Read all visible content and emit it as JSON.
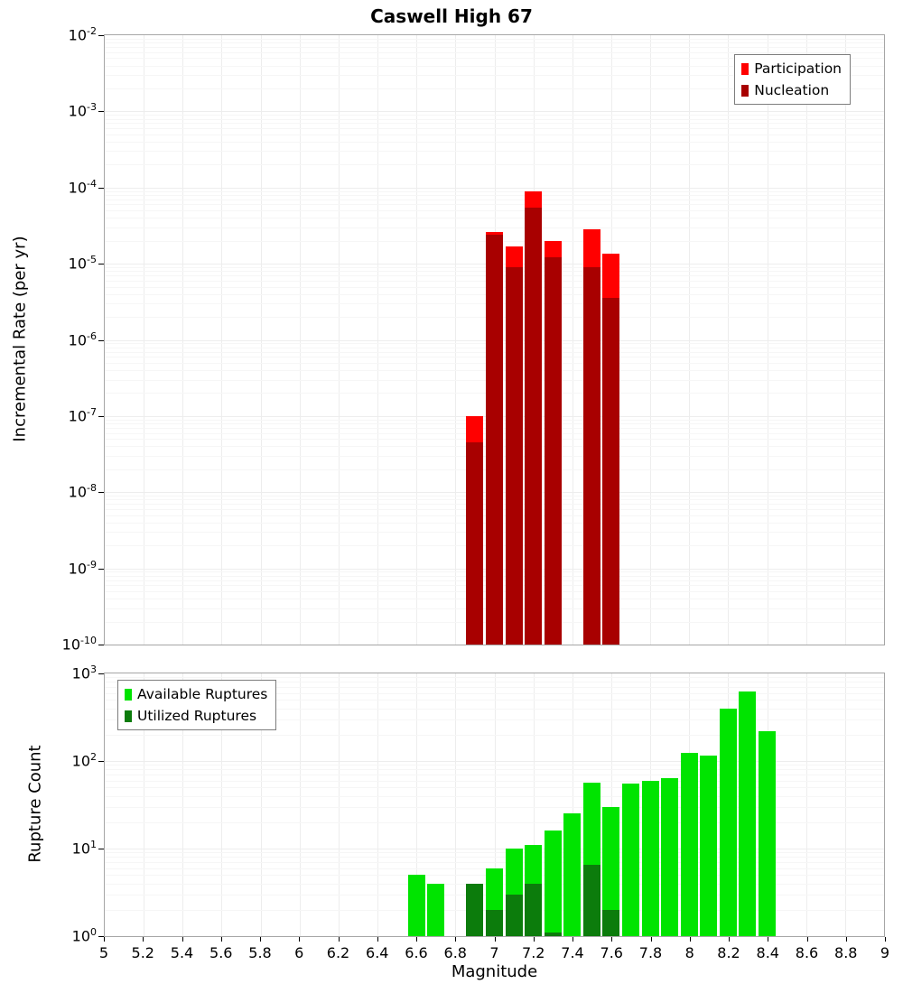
{
  "title": "Caswell High 67",
  "x_axis": {
    "label": "Magnitude",
    "min": 5,
    "max": 9,
    "tick_step": 0.2,
    "tick_labels": [
      "5",
      "5.2",
      "5.4",
      "5.6",
      "5.8",
      "6",
      "6.2",
      "6.4",
      "6.6",
      "6.8",
      "7",
      "7.2",
      "7.4",
      "7.6",
      "7.8",
      "8",
      "8.2",
      "8.4",
      "8.6",
      "8.8",
      "9"
    ]
  },
  "top_chart": {
    "ylabel": "Incremental Rate (per yr)",
    "y_tick_exponents": [
      -2,
      -3,
      -4,
      -5,
      -6,
      -7,
      -8,
      -9,
      -10
    ],
    "legend": [
      {
        "label": "Participation",
        "color": "#ff0000"
      },
      {
        "label": "Nucleation",
        "color": "#a80000"
      }
    ]
  },
  "bottom_chart": {
    "ylabel": "Rupture Count",
    "y_tick_exponents": [
      0,
      1,
      2,
      3
    ],
    "legend": [
      {
        "label": "Available Ruptures",
        "color": "#00e400"
      },
      {
        "label": "Utilized Ruptures",
        "color": "#0c7c0c"
      }
    ]
  },
  "chart_data": [
    {
      "type": "bar",
      "title": "Caswell High 67",
      "xlabel": "Magnitude",
      "ylabel": "Incremental Rate (per yr)",
      "yscale": "log",
      "ylim": [
        1e-10,
        0.01
      ],
      "xlim": [
        5,
        9
      ],
      "bar_width": 0.1,
      "legend_position": "top-right",
      "x": [
        6.9,
        7.0,
        7.1,
        7.2,
        7.3,
        7.5,
        7.6
      ],
      "series": [
        {
          "name": "Participation",
          "color": "#ff0000",
          "values": [
            1e-07,
            2.6e-05,
            1.7e-05,
            9e-05,
            2e-05,
            2.8e-05,
            1.35e-05
          ]
        },
        {
          "name": "Nucleation",
          "color": "#a80000",
          "values": [
            4.5e-08,
            2.4e-05,
            9e-06,
            5.5e-05,
            1.2e-05,
            9e-06,
            3.6e-06
          ]
        }
      ]
    },
    {
      "type": "bar",
      "title": "",
      "xlabel": "Magnitude",
      "ylabel": "Rupture Count",
      "yscale": "log",
      "ylim": [
        1,
        1000
      ],
      "xlim": [
        5,
        9
      ],
      "bar_width": 0.1,
      "legend_position": "top-left",
      "x": [
        6.6,
        6.7,
        6.9,
        7.0,
        7.1,
        7.2,
        7.3,
        7.4,
        7.5,
        7.6,
        7.7,
        7.8,
        7.9,
        8.0,
        8.1,
        8.2,
        8.3,
        8.4
      ],
      "series": [
        {
          "name": "Available Ruptures",
          "color": "#00e400",
          "values": [
            5,
            4,
            4,
            6,
            10,
            11,
            16,
            25,
            57,
            30,
            55,
            60,
            63,
            125,
            115,
            400,
            620,
            220
          ]
        },
        {
          "name": "Utilized Ruptures",
          "color": "#0c7c0c",
          "values": [
            0,
            0,
            4,
            2,
            3,
            4,
            1.1,
            0,
            6.5,
            2,
            0,
            0,
            0,
            0,
            0,
            0,
            0,
            0
          ]
        }
      ]
    }
  ]
}
